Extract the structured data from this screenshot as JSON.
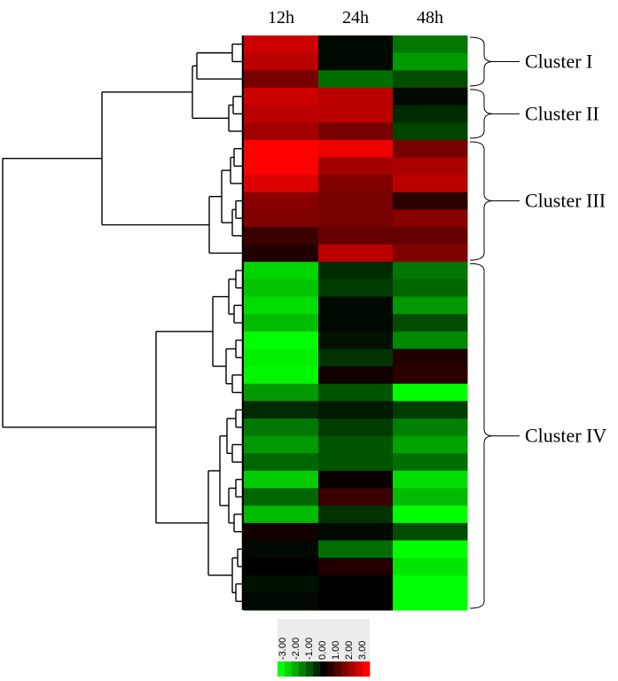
{
  "chart_data": {
    "type": "heatmap",
    "title": "",
    "columns": [
      "12h",
      "24h",
      "48h"
    ],
    "color_scale": {
      "min": -3,
      "max": 3,
      "low_color": "#00ff00",
      "mid_color": "#000000",
      "high_color": "#ff0000"
    },
    "legend": {
      "ticks": [
        "-3.00",
        "-2.00",
        "-1.00",
        "0.00",
        "1.00",
        "2.00",
        "3.00"
      ],
      "swatches": [
        -3,
        -2.5,
        -2,
        -1.5,
        -1,
        -0.5,
        0,
        0.5,
        1,
        1.5,
        2,
        2.5,
        3
      ],
      "placement": "bottom-center"
    },
    "rows": [
      [
        2.4,
        -0.1,
        -1.4
      ],
      [
        2.2,
        -0.1,
        -1.8
      ],
      [
        1.4,
        -1.3,
        -0.9
      ],
      [
        2.4,
        2.2,
        -0.1
      ],
      [
        2.2,
        2.2,
        -0.5
      ],
      [
        1.9,
        1.4,
        -0.8
      ],
      [
        3.0,
        2.8,
        1.4
      ],
      [
        3.0,
        1.9,
        2.0
      ],
      [
        2.6,
        1.5,
        2.2
      ],
      [
        1.6,
        1.4,
        0.5
      ],
      [
        1.5,
        1.4,
        1.6
      ],
      [
        0.7,
        1.2,
        1.2
      ],
      [
        0.4,
        2.2,
        1.5
      ],
      [
        -2.5,
        -0.5,
        -1.4
      ],
      [
        -2.3,
        -0.7,
        -1.2
      ],
      [
        -2.6,
        -0.1,
        -1.8
      ],
      [
        -2.2,
        -0.1,
        -0.9
      ],
      [
        -3.0,
        -0.2,
        -1.6
      ],
      [
        -2.8,
        -0.6,
        0.4
      ],
      [
        -2.9,
        0.2,
        0.5
      ],
      [
        -1.8,
        -1.0,
        -3.0
      ],
      [
        -0.5,
        -0.3,
        -0.7
      ],
      [
        -1.4,
        -0.7,
        -1.5
      ],
      [
        -1.8,
        -1.0,
        -1.9
      ],
      [
        -1.2,
        -1.0,
        -1.3
      ],
      [
        -2.4,
        0.1,
        -2.6
      ],
      [
        -1.2,
        0.7,
        -2.2
      ],
      [
        -2.2,
        -0.6,
        -3.0
      ],
      [
        0.2,
        -0.1,
        -0.9
      ],
      [
        -0.1,
        -1.3,
        -3.0
      ],
      [
        0.0,
        0.4,
        -2.7
      ],
      [
        -0.2,
        0.0,
        -3.0
      ],
      [
        -0.1,
        0.0,
        -3.0
      ]
    ],
    "clusters": [
      {
        "label": "Cluster I",
        "first_row": 0,
        "last_row": 2
      },
      {
        "label": "Cluster II",
        "first_row": 3,
        "last_row": 5
      },
      {
        "label": "Cluster III",
        "first_row": 6,
        "last_row": 12
      },
      {
        "label": "Cluster IV",
        "first_row": 13,
        "last_row": 32
      }
    ]
  }
}
